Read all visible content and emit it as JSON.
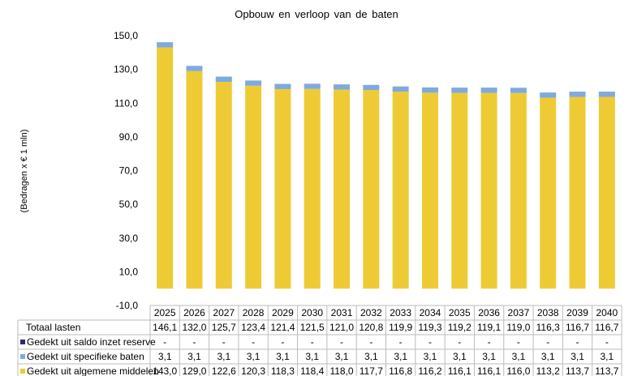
{
  "chart_data": {
    "type": "bar",
    "stacked": true,
    "title": "Opbouw  en  verloop  van  de  baten",
    "ylabel": "(Bedragen x € 1 mln)",
    "xlabel": "",
    "ylim": [
      -10,
      150
    ],
    "yticks": [
      "150,0",
      "130,0",
      "110,0",
      "90,0",
      "70,0",
      "50,0",
      "30,0",
      "10,0",
      "-10,0"
    ],
    "ytick_values": [
      150,
      130,
      110,
      90,
      70,
      50,
      30,
      10,
      -10
    ],
    "categories": [
      "2025",
      "2026",
      "2027",
      "2028",
      "2029",
      "2030",
      "2031",
      "2032",
      "2033",
      "2034",
      "2035",
      "2036",
      "2037",
      "2038",
      "2039",
      "2040"
    ],
    "table_rows": [
      {
        "name": "Totaal lasten",
        "values": [
          "146,1",
          "132,0",
          "125,7",
          "123,4",
          "121,4",
          "121,5",
          "121,0",
          "120,8",
          "119,9",
          "119,3",
          "119,2",
          "119,1",
          "119,0",
          "116,3",
          "116,7",
          "116,7"
        ]
      },
      {
        "name": "Gedekt uit saldo inzet reserve",
        "color": "#2E2A6B",
        "values": [
          "-",
          "-",
          "-",
          "-",
          "-",
          "-",
          "-",
          "-",
          "-",
          "-",
          "-",
          "-",
          "-",
          "-",
          "-",
          "-"
        ]
      },
      {
        "name": "Gedekt uit specifieke baten",
        "color": "#7FAADD",
        "values": [
          "3,1",
          "3,1",
          "3,1",
          "3,1",
          "3,1",
          "3,1",
          "3,1",
          "3,1",
          "3,1",
          "3,1",
          "3,1",
          "3,1",
          "3,1",
          "3,1",
          "3,1",
          "3,1"
        ]
      },
      {
        "name": "Gedekt uit algemene middelen",
        "color": "#EECB35",
        "values": [
          "143,0",
          "129,0",
          "122,6",
          "120,3",
          "118,3",
          "118,4",
          "118,0",
          "117,7",
          "116,8",
          "116,2",
          "116,1",
          "116,1",
          "116,0",
          "113,2",
          "113,7",
          "113,7"
        ]
      }
    ],
    "series": [
      {
        "name": "Gedekt uit algemene middelen",
        "color": "#EECB35",
        "values": [
          143.0,
          129.0,
          122.6,
          120.3,
          118.3,
          118.4,
          118.0,
          117.7,
          116.8,
          116.2,
          116.1,
          116.1,
          116.0,
          113.2,
          113.7,
          113.7
        ]
      },
      {
        "name": "Gedekt uit specifieke baten",
        "color": "#7FAADD",
        "values": [
          3.1,
          3.1,
          3.1,
          3.1,
          3.1,
          3.1,
          3.1,
          3.1,
          3.1,
          3.1,
          3.1,
          3.1,
          3.1,
          3.1,
          3.1,
          3.1
        ]
      },
      {
        "name": "Gedekt uit saldo inzet reserve",
        "color": "#2E2A6B",
        "values": [
          0,
          0,
          0,
          0,
          0,
          0,
          0,
          0,
          0,
          0,
          0,
          0,
          0,
          0,
          0,
          0
        ]
      }
    ]
  }
}
